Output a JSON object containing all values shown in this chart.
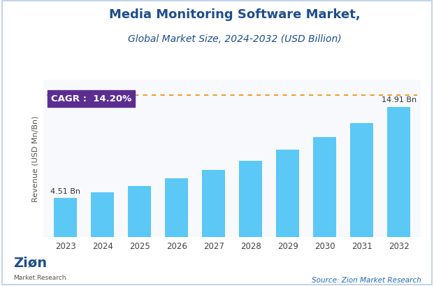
{
  "title_line1": "Media Monitoring Software Market,",
  "title_line2": "Global Market Size, 2024-2032 (USD Billion)",
  "ylabel": "Revenue (USD Mn/Bn)",
  "years": [
    2023,
    2024,
    2025,
    2026,
    2027,
    2028,
    2029,
    2030,
    2031,
    2032
  ],
  "values": [
    4.51,
    5.15,
    5.88,
    6.71,
    7.66,
    8.75,
    9.99,
    11.41,
    13.03,
    14.91
  ],
  "bar_color": "#5bc8f5",
  "label_first": "4.51 Bn",
  "label_last": "14.91 Bn",
  "cagr_text": "CAGR :  14.20%",
  "cagr_box_color": "#5c2d91",
  "cagr_text_color": "#ffffff",
  "source_text": "Source: Zion Market Research",
  "title_color": "#1f4e8c",
  "subtitle_color": "#1f4e8c",
  "background_color": "#ffffff",
  "plot_bg_color": "#f7f9fc",
  "ylim": [
    0,
    18
  ],
  "dotted_line_color": "#f0a030",
  "source_color": "#1f6ab5",
  "border_color": "#b8cce4",
  "title_fontsize": 13,
  "subtitle_fontsize": 10
}
